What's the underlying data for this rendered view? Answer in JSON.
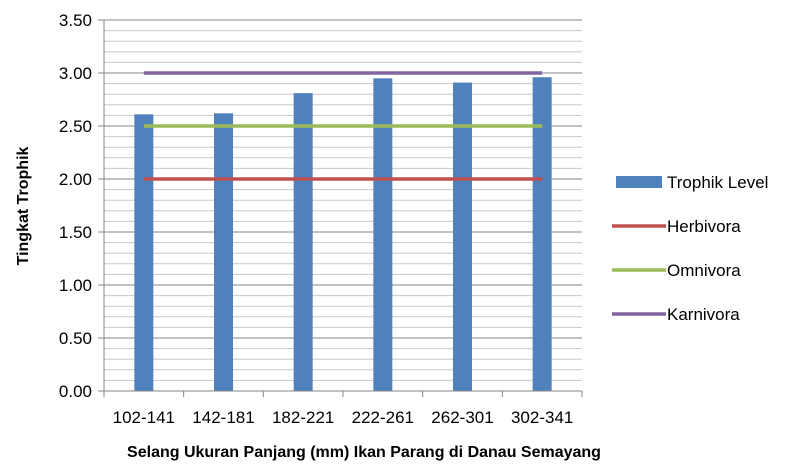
{
  "chart_data": {
    "type": "bar",
    "title": "",
    "xlabel": "Selang Ukuran Panjang (mm) Ikan Parang di Danau Semayang",
    "ylabel": "Tingkat Trophik",
    "categories": [
      "102-141",
      "142-181",
      "182-221",
      "222-261",
      "262-301",
      "302-341"
    ],
    "ylim": [
      0,
      3.5
    ],
    "yticks": [
      "0.00",
      "0.50",
      "1.00",
      "1.50",
      "2.00",
      "2.50",
      "3.00",
      "3.50"
    ],
    "grid": true,
    "legend_position": "right",
    "series": [
      {
        "name": "Trophik Level",
        "type": "bar",
        "color": "#4f81bd",
        "values": [
          2.61,
          2.62,
          2.81,
          2.95,
          2.91,
          2.96
        ]
      },
      {
        "name": "Herbivora",
        "type": "line",
        "color": "#c0504d",
        "values": [
          2.0,
          2.0,
          2.0,
          2.0,
          2.0,
          2.0
        ]
      },
      {
        "name": "Omnivora",
        "type": "line",
        "color": "#9bbb59",
        "values": [
          2.5,
          2.5,
          2.5,
          2.5,
          2.5,
          2.5
        ]
      },
      {
        "name": "Karnivora",
        "type": "line",
        "color": "#8064a2",
        "values": [
          3.0,
          3.0,
          3.0,
          3.0,
          3.0,
          3.0
        ]
      }
    ]
  }
}
